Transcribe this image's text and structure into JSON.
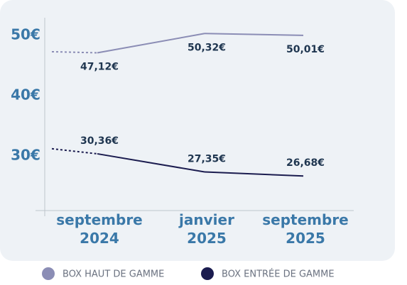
{
  "chart_data": {
    "type": "line",
    "categories": [
      null,
      "septembre 2024",
      "janvier 2025",
      "septembre 2025"
    ],
    "series": [
      {
        "name": "BOX HAUT DE GAMME",
        "color": "#8b8db5",
        "values": [
          47.3,
          47.12,
          50.32,
          50.01
        ],
        "value_labels": [
          null,
          "47,12€",
          "50,32€",
          "50,01€"
        ]
      },
      {
        "name": "BOX ENTRÉE DE GAMME",
        "color": "#1b1c4f",
        "values": [
          31.2,
          30.36,
          27.35,
          26.68
        ],
        "value_labels": [
          null,
          "30,36€",
          "27,35€",
          "26,68€"
        ]
      }
    ],
    "ylim": [
      21,
      53
    ],
    "yticks": [
      {
        "value": 50,
        "label": "50€"
      },
      {
        "value": 40,
        "label": "40€"
      },
      {
        "value": 30,
        "label": "30€"
      }
    ],
    "grid": false
  }
}
